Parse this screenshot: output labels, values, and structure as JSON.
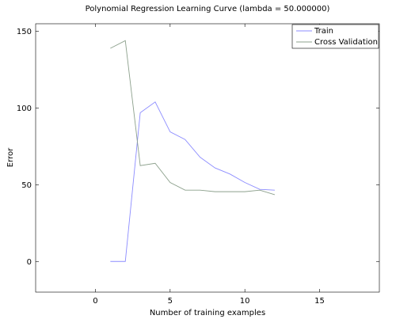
{
  "chart_data": {
    "type": "line",
    "title": "Polynomial Regression Learning Curve (lambda = 50.000000)",
    "xlabel": "Number of training examples",
    "ylabel": "Error",
    "xlim": [
      -4,
      19
    ],
    "ylim": [
      -20,
      155
    ],
    "xticks": [
      0,
      5,
      10,
      15
    ],
    "yticks": [
      0,
      50,
      100,
      150
    ],
    "grid": false,
    "legend_position": "top-right",
    "x": [
      1,
      2,
      3,
      4,
      5,
      6,
      7,
      8,
      9,
      10,
      11,
      12
    ],
    "series": [
      {
        "name": "Train",
        "color": "#8c8cff",
        "values": [
          0.0,
          0.0,
          97.0,
          104.0,
          84.5,
          79.5,
          68.0,
          61.0,
          57.0,
          51.5,
          47.0,
          46.5
        ]
      },
      {
        "name": "Cross Validation",
        "color": "#8ca08c",
        "values": [
          139.0,
          144.0,
          62.5,
          64.0,
          51.5,
          46.5,
          46.5,
          45.5,
          45.5,
          45.5,
          46.5,
          43.5
        ]
      }
    ]
  }
}
